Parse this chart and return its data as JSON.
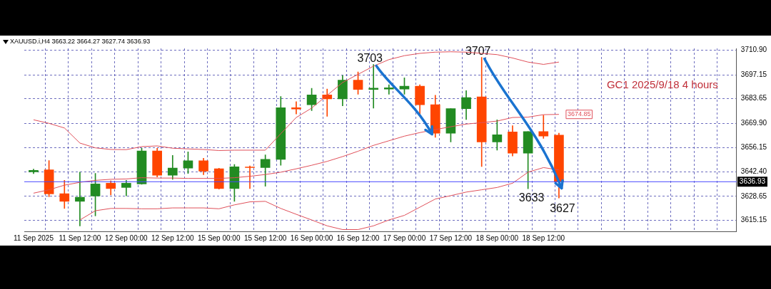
{
  "chart_data": {
    "type": "candlestick",
    "title": "GC1 2025/9/18 4 hours",
    "subtitle": "XAUUSD.i,H4 3663.22 3664.27 3627.74 3636.93",
    "categories": [
      "11 Sep 2025",
      null,
      null,
      "11 Sep 12:00",
      null,
      null,
      "12 Sep 00:00",
      null,
      null,
      "12 Sep 12:00",
      null,
      null,
      "15 Sep 00:00",
      null,
      null,
      "15 Sep 12:00",
      null,
      null,
      "16 Sep 00:00",
      null,
      null,
      "16 Sep 12:00",
      null,
      null,
      "17 Sep 00:00",
      null,
      null,
      "17 Sep 12:00",
      null,
      null,
      "18 Sep 00:00",
      null,
      null,
      "18 Sep 12:00",
      null
    ],
    "ohlc": [
      [
        3642.5,
        3644,
        3641.5,
        3643.3
      ],
      [
        3643.6,
        3648.8,
        3628.5,
        3630.1
      ],
      [
        3630.2,
        3637.7,
        3621.9,
        3625.9
      ],
      [
        3625.9,
        3642.3,
        3612,
        3628.2
      ],
      [
        3628.9,
        3641.6,
        3617.7,
        3635.7
      ],
      [
        3636.1,
        3637.4,
        3629.5,
        3633.1
      ],
      [
        3633.7,
        3637.7,
        3629,
        3636.1
      ],
      [
        3635.7,
        3655.8,
        3635.5,
        3654.3
      ],
      [
        3654.3,
        3655.8,
        3639.6,
        3640.6
      ],
      [
        3640.6,
        3651.8,
        3638.3,
        3644.6
      ],
      [
        3644.6,
        3653.8,
        3641.6,
        3648.7
      ],
      [
        3648.7,
        3650.1,
        3640.9,
        3642.9
      ],
      [
        3644.2,
        3644.5,
        3632.8,
        3633.1
      ],
      [
        3633.1,
        3646.6,
        3625.9,
        3645.3
      ],
      [
        3645.2,
        3645.8,
        3633.1,
        3644.9
      ],
      [
        3644.9,
        3652.1,
        3634.4,
        3649.5
      ],
      [
        3649.5,
        3684.9,
        3646.2,
        3678.6
      ],
      [
        3678.6,
        3682,
        3675.1,
        3677.9
      ],
      [
        3680.3,
        3689.5,
        3677,
        3685.8
      ],
      [
        3685.8,
        3689.1,
        3673.8,
        3683.6
      ],
      [
        3683.6,
        3696.7,
        3679.7,
        3694.1
      ],
      [
        3694.1,
        3698.7,
        3686.2,
        3688.9
      ],
      [
        3688.9,
        3703,
        3678.4,
        3689.6
      ],
      [
        3689.1,
        3691.5,
        3686.2,
        3689.8
      ],
      [
        3689.1,
        3695.4,
        3686.2,
        3690.7
      ],
      [
        3690.7,
        3691.5,
        3674.4,
        3680.3
      ],
      [
        3680.3,
        3685.6,
        3661.9,
        3664.2
      ],
      [
        3664.2,
        3678.1,
        3659.3,
        3678.1
      ],
      [
        3678.1,
        3688.2,
        3672,
        3684.3
      ],
      [
        3684.7,
        3707,
        3645.5,
        3659.3
      ],
      [
        3659.3,
        3671.8,
        3654.7,
        3663.4
      ],
      [
        3665,
        3668.5,
        3651.4,
        3653
      ],
      [
        3653,
        3665.2,
        3633,
        3665.2
      ],
      [
        3665.2,
        3674.4,
        3661.3,
        3662.6
      ],
      [
        3663.22,
        3664.27,
        3627.74,
        3636.93
      ]
    ],
    "colors": [
      "#228b22",
      "#ff4500",
      "#ff4500",
      "#228b22",
      "#228b22",
      "#ff4500",
      "#228b22",
      "#228b22",
      "#ff4500",
      "#228b22",
      "#228b22",
      "#ff4500",
      "#ff4500",
      "#228b22",
      "#ff4500",
      "#228b22",
      "#228b22",
      "#ff4500",
      "#228b22",
      "#ff4500",
      "#228b22",
      "#ff4500",
      "#228b22",
      "#228b22",
      "#228b22",
      "#ff4500",
      "#ff4500",
      "#228b22",
      "#228b22",
      "#ff4500",
      "#228b22",
      "#ff4500",
      "#228b22",
      "#ff4500",
      "#ff4500"
    ],
    "series": [
      {
        "type": "line",
        "color": "#e0505a",
        "values": [
          3671.8,
          3669.8,
          3667.2,
          3658.7,
          3656,
          3655.1,
          3655,
          3656.7,
          3657.1,
          3655.8,
          3655.4,
          3655.1,
          3654.5,
          3654.7,
          3654.7,
          3654.7,
          3664,
          3673.1,
          3678.4,
          3685.6,
          3692.8,
          3697.4,
          3702,
          3705.7,
          3707.9,
          3709.2,
          3709.9,
          3710.1,
          3709.9,
          3709.2,
          3708.5,
          3706.6,
          3704.3,
          3703,
          3704.3
        ]
      },
      {
        "type": "line",
        "color": "#e0505a",
        "values": [
          3630.5,
          3632.4,
          3635,
          3636.6,
          3637.7,
          3638.3,
          3638.5,
          3639.2,
          3639,
          3639,
          3638.8,
          3638.8,
          3638.8,
          3639.2,
          3640,
          3641,
          3642.3,
          3644.2,
          3646.2,
          3648.4,
          3651.1,
          3654.1,
          3657.4,
          3660,
          3662.6,
          3664.6,
          3666.3,
          3667.9,
          3669.4,
          3670.2,
          3671.1,
          3673.1,
          3673.3,
          3674.7,
          3674.85
        ],
        "value_labels": [
          null,
          null,
          null,
          null,
          null,
          null,
          null,
          null,
          null,
          null,
          null,
          null,
          null,
          null,
          null,
          null,
          null,
          null,
          null,
          null,
          null,
          null,
          null,
          null,
          null,
          null,
          null,
          null,
          null,
          null,
          null,
          null,
          null,
          null,
          "3674.85"
        ]
      },
      {
        "type": "line",
        "color": "#e0505a",
        "values": [
          null,
          null,
          null,
          3615.4,
          3620.6,
          3621.9,
          3621.9,
          3621.7,
          3621.7,
          3622.2,
          3622.2,
          3622.2,
          3621.7,
          3623.9,
          3625.6,
          3625.9,
          3621.9,
          3618.6,
          3615.4,
          3612.1,
          3610,
          3610,
          3612.1,
          3615.4,
          3618,
          3622.6,
          3627.2,
          3629.1,
          3631.1,
          3632.4,
          3633.7,
          3636.1,
          3642.3,
          3644.9,
          3643.6
        ]
      }
    ],
    "ylim": [
      3609,
      3712
    ],
    "yticks": [
      3615.15,
      3628.65,
      {
        "value": 3642.4,
        "label": "3642.40"
      },
      3656.15,
      {
        "value": 3669.9,
        "label": "3669.90"
      },
      3683.65,
      3697.15,
      {
        "value": 3710.9,
        "label": "3710.90"
      }
    ],
    "grid": true,
    "legend": false,
    "ref_lines": [
      {
        "axis": "y",
        "value": 3636.93,
        "label": "3636.93",
        "color": "#4646ff"
      }
    ],
    "annotations": [
      {
        "text": "3703",
        "y": 3703
      },
      {
        "text": "3707",
        "y": 3707
      },
      {
        "text": "3633",
        "y": 3633
      },
      {
        "text": "3627",
        "y": 3627
      }
    ]
  }
}
